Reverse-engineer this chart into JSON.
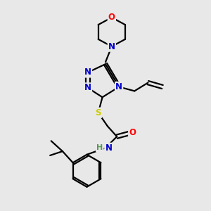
{
  "bg_color": "#e8e8e8",
  "bond_color": "#000000",
  "N_color": "#0000cc",
  "O_color": "#ff0000",
  "S_color": "#cccc00",
  "H_color": "#559955",
  "line_width": 1.6,
  "font_size": 8.5,
  "fig_size": [
    3.0,
    3.0
  ],
  "dpi": 100,
  "xlim": [
    0,
    10
  ],
  "ylim": [
    0,
    10
  ]
}
